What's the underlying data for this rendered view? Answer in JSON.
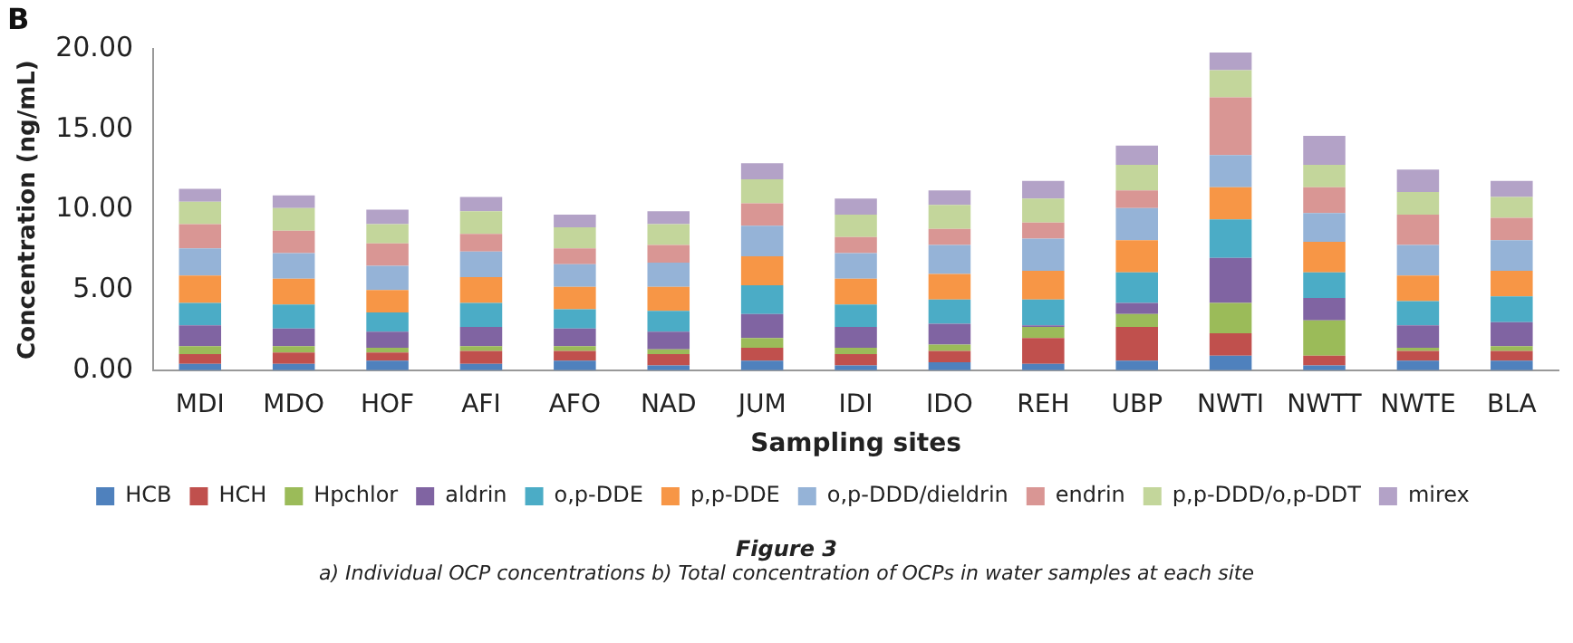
{
  "chart_data": {
    "type": "bar",
    "stacked": true,
    "title": "B",
    "xlabel": "Sampling sites",
    "ylabel": "Concentration (ng/mL)",
    "categories": [
      "MDI",
      "MDO",
      "HOF",
      "AFI",
      "AFO",
      "NAD",
      "JUM",
      "IDI",
      "IDO",
      "REH",
      "UBP",
      "NWTI",
      "NWTT",
      "NWTE",
      "BLA"
    ],
    "ylim": [
      0,
      20
    ],
    "yticks": [
      {
        "value": 0,
        "label": "0.00"
      },
      {
        "value": 5,
        "label": "5.00"
      },
      {
        "value": 10,
        "label": "10.00"
      },
      {
        "value": 15,
        "label": "15.00"
      },
      {
        "value": 20,
        "label": "20.00"
      }
    ],
    "grid": false,
    "legend": "bottom",
    "series": [
      {
        "name": "HCB",
        "color": "#4f81bd",
        "values": [
          0.4,
          0.4,
          0.6,
          0.4,
          0.6,
          0.3,
          0.6,
          0.3,
          0.5,
          0.4,
          0.6,
          0.9,
          0.3,
          0.6,
          0.6
        ]
      },
      {
        "name": "HCH",
        "color": "#c0504d",
        "values": [
          0.6,
          0.7,
          0.5,
          0.8,
          0.6,
          0.7,
          0.8,
          0.7,
          0.7,
          1.6,
          2.1,
          1.4,
          0.6,
          0.6,
          0.6
        ]
      },
      {
        "name": "Hpchlor",
        "color": "#9bbb59",
        "values": [
          0.5,
          0.4,
          0.3,
          0.3,
          0.3,
          0.3,
          0.6,
          0.4,
          0.4,
          0.7,
          0.8,
          1.9,
          2.2,
          0.2,
          0.3
        ]
      },
      {
        "name": "aldrin",
        "color": "#8064a2",
        "values": [
          1.3,
          1.1,
          1.0,
          1.2,
          1.1,
          1.1,
          1.5,
          1.3,
          1.3,
          0.1,
          0.7,
          2.8,
          1.4,
          1.4,
          1.5
        ]
      },
      {
        "name": "o,p-DDE",
        "color": "#4bacc6",
        "values": [
          1.4,
          1.5,
          1.2,
          1.5,
          1.2,
          1.3,
          1.8,
          1.4,
          1.5,
          1.6,
          1.9,
          2.4,
          1.6,
          1.5,
          1.6
        ]
      },
      {
        "name": "p,p-DDE",
        "color": "#f79646",
        "values": [
          1.7,
          1.6,
          1.4,
          1.6,
          1.4,
          1.5,
          1.8,
          1.6,
          1.6,
          1.8,
          2.0,
          2.0,
          1.9,
          1.6,
          1.6
        ]
      },
      {
        "name": "o,p-DDD/dieldrin",
        "color": "#95b3d7",
        "values": [
          1.7,
          1.6,
          1.5,
          1.6,
          1.4,
          1.5,
          1.9,
          1.6,
          1.8,
          2.0,
          2.0,
          2.0,
          1.8,
          1.9,
          1.9
        ]
      },
      {
        "name": "endrin",
        "color": "#d99694",
        "values": [
          1.5,
          1.4,
          1.4,
          1.1,
          1.0,
          1.1,
          1.4,
          1.0,
          1.0,
          1.0,
          1.1,
          3.6,
          1.6,
          1.9,
          1.4
        ]
      },
      {
        "name": "p,p-DDD/o,p-DDT",
        "color": "#c3d69b",
        "values": [
          1.4,
          1.4,
          1.2,
          1.4,
          1.3,
          1.3,
          1.5,
          1.4,
          1.5,
          1.5,
          1.6,
          1.7,
          1.4,
          1.4,
          1.3
        ]
      },
      {
        "name": "mirex",
        "color": "#b3a2c7",
        "values": [
          0.8,
          0.8,
          0.9,
          0.9,
          0.8,
          0.8,
          1.0,
          1.0,
          0.9,
          1.1,
          1.2,
          1.1,
          1.8,
          1.4,
          1.0
        ]
      }
    ],
    "annotations": [
      "Figure 3",
      "a) Individual OCP concentrations b) Total concentration of OCPs in water samples at each site"
    ]
  }
}
